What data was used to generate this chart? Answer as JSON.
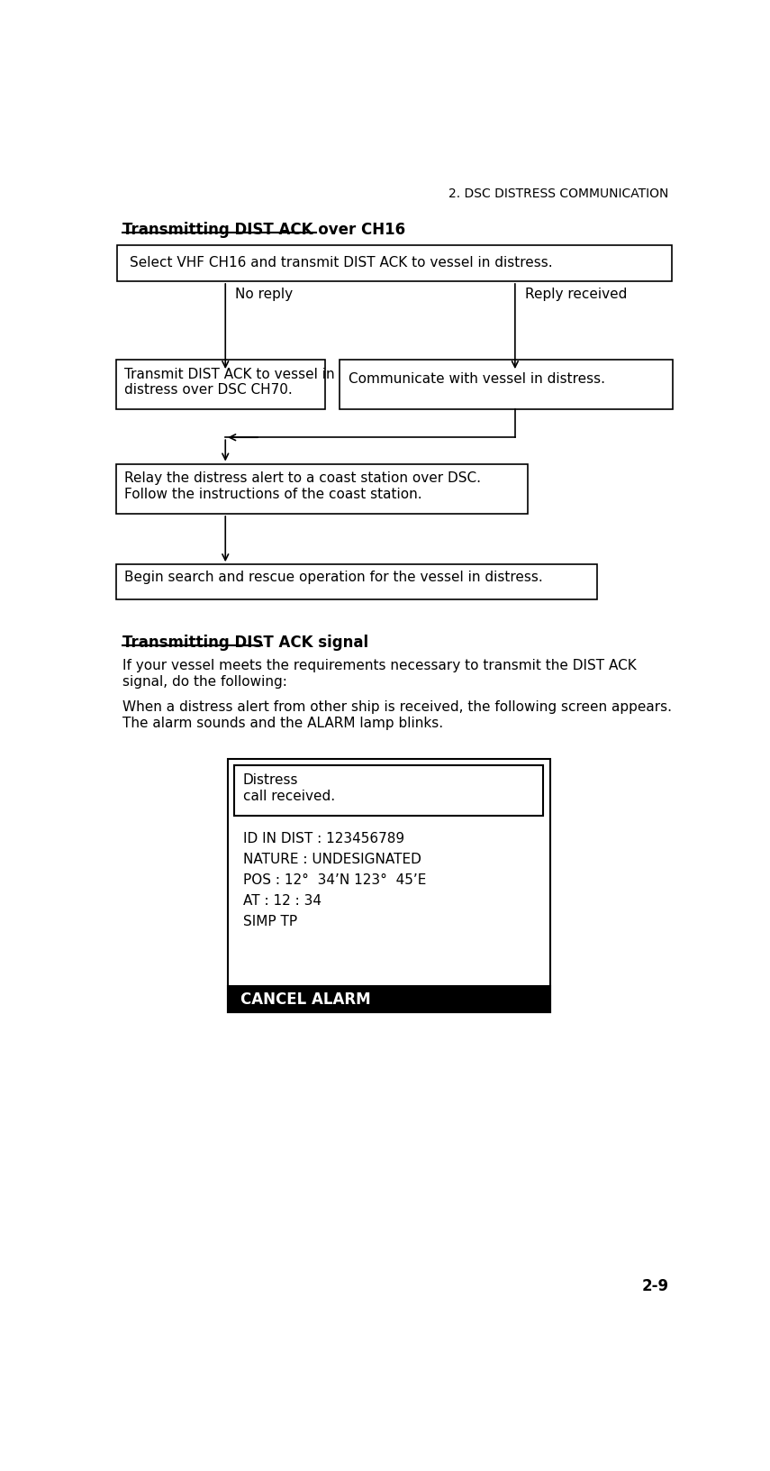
{
  "page_header": "2. DSC DISTRESS COMMUNICATION",
  "page_number": "2-9",
  "section1_title": "Transmitting DIST ACK over CH16",
  "box1_text": "Select VHF CH16 and transmit DIST ACK to vessel in distress.",
  "label_no_reply": "No reply",
  "label_reply": "Reply received",
  "box2_text": "Transmit DIST ACK to vessel in\ndistress over DSC CH70.",
  "box3_text": "Communicate with vessel in distress.",
  "box4_text": "Relay the distress alert to a coast station over DSC.\nFollow the instructions of the coast station.",
  "box5_text": "Begin search and rescue operation for the vessel in distress.",
  "section2_title": "Transmitting DIST ACK signal",
  "para1": "If your vessel meets the requirements necessary to transmit the DIST ACK\nsignal, do the following:",
  "para2": "When a distress alert from other ship is received, the following screen appears.\nThe alarm sounds and the ALARM lamp blinks.",
  "screen_title_text": "Distress\ncall received.",
  "screen_lines": [
    "ID IN DIST : 123456789",
    "NATURE : UNDESIGNATED",
    "POS : 12°  34’N 123°  45’E",
    "AT : 12 : 34",
    "SIMP TP"
  ],
  "cancel_btn_text": "CANCEL ALARM",
  "bg_color": "#ffffff",
  "text_color": "#000000",
  "cancel_bg": "#000000",
  "cancel_fg": "#ffffff"
}
